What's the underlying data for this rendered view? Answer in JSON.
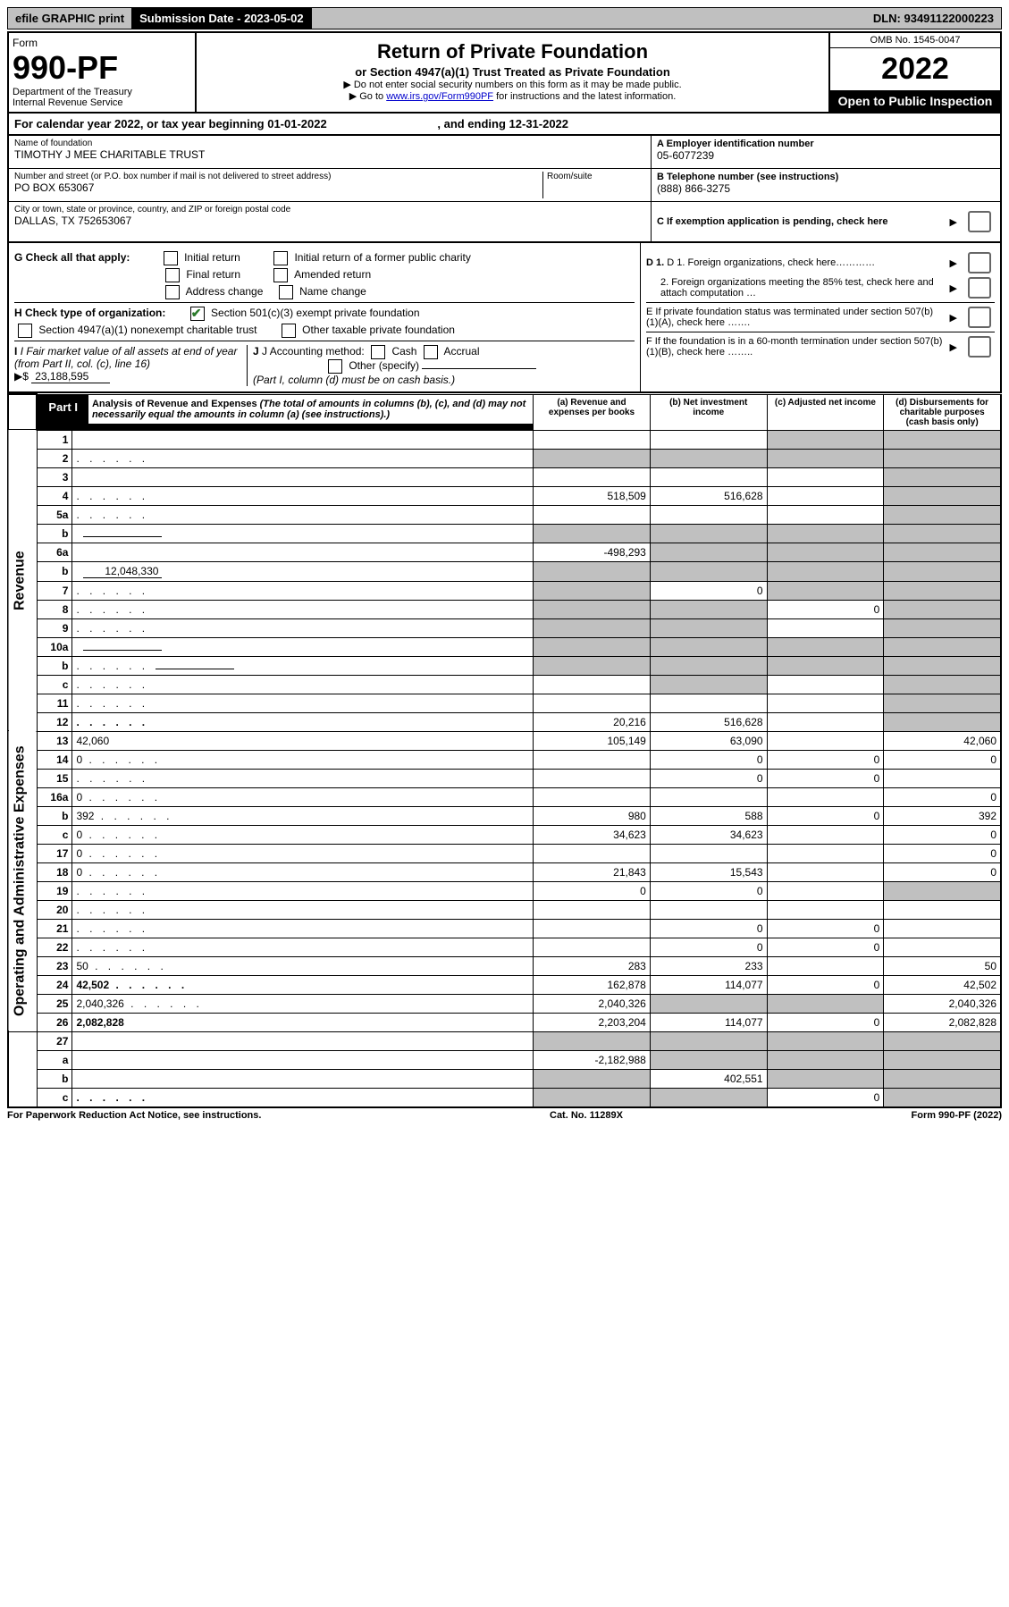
{
  "topbar": {
    "efile": "efile GRAPHIC print",
    "submission_label": "Submission Date - 2023-05-02",
    "dln_label": "DLN: 93491122000223"
  },
  "form": {
    "form_label": "Form",
    "number": "990-PF",
    "dept": "Department of the Treasury",
    "irs": "Internal Revenue Service",
    "title": "Return of Private Foundation",
    "subtitle": "or Section 4947(a)(1) Trust Treated as Private Foundation",
    "note1": "▶ Do not enter social security numbers on this form as it may be made public.",
    "note2_prefix": "▶ Go to ",
    "note2_link": "www.irs.gov/Form990PF",
    "note2_suffix": " for instructions and the latest information.",
    "omb": "OMB No. 1545-0047",
    "year": "2022",
    "open": "Open to Public Inspection"
  },
  "calendar": {
    "text_a": "For calendar year 2022, or tax year beginning 01-01-2022",
    "text_b": ", and ending 12-31-2022"
  },
  "id": {
    "name_label": "Name of foundation",
    "name": "TIMOTHY J MEE CHARITABLE TRUST",
    "addr_label": "Number and street (or P.O. box number if mail is not delivered to street address)",
    "addr": "PO BOX 653067",
    "room_label": "Room/suite",
    "city_label": "City or town, state or province, country, and ZIP or foreign postal code",
    "city": "DALLAS, TX  752653067",
    "a_label": "A Employer identification number",
    "a_val": "05-6077239",
    "b_label": "B Telephone number (see instructions)",
    "b_val": "(888) 866-3275",
    "c_label": "C If exemption application is pending, check here"
  },
  "checks": {
    "g_label": "G Check all that apply:",
    "g_opts": [
      "Initial return",
      "Initial return of a former public charity",
      "Final return",
      "Amended return",
      "Address change",
      "Name change"
    ],
    "h_label": "H Check type of organization:",
    "h_opt1": "Section 501(c)(3) exempt private foundation",
    "h_opt2": "Section 4947(a)(1) nonexempt charitable trust",
    "h_opt3": "Other taxable private foundation",
    "i_label": "I Fair market value of all assets at end of year (from Part II, col. (c), line 16)",
    "i_prefix": "▶$ ",
    "i_val": "23,188,595",
    "j_label": "J Accounting method:",
    "j_cash": "Cash",
    "j_accrual": "Accrual",
    "j_other": "Other (specify)",
    "j_note": "(Part I, column (d) must be on cash basis.)",
    "d1": "D 1. Foreign organizations, check here…………",
    "d2": "2. Foreign organizations meeting the 85% test, check here and attach computation …",
    "e": "E  If private foundation status was terminated under section 507(b)(1)(A), check here …….",
    "f": "F  If the foundation is in a 60-month termination under section 507(b)(1)(B), check here …….."
  },
  "part1": {
    "label": "Part I",
    "title": "Analysis of Revenue and Expenses",
    "title_note": "(The total of amounts in columns (b), (c), and (d) may not necessarily equal the amounts in column (a) (see instructions).)",
    "col_a": "(a) Revenue and expenses per books",
    "col_b": "(b) Net investment income",
    "col_c": "(c) Adjusted net income",
    "col_d": "(d) Disbursements for charitable purposes (cash basis only)"
  },
  "side": {
    "revenue": "Revenue",
    "expenses": "Operating and Administrative Expenses"
  },
  "rows": [
    {
      "n": "1",
      "d": "",
      "a": "",
      "b": "",
      "c": "",
      "cg": true,
      "dg": true
    },
    {
      "n": "2",
      "d": "",
      "dots": true,
      "a": "",
      "b": "",
      "c": "",
      "ag": true,
      "bg": true,
      "cg": true,
      "dg": true
    },
    {
      "n": "3",
      "d": "",
      "a": "",
      "b": "",
      "c": "",
      "dg": true
    },
    {
      "n": "4",
      "d": "",
      "dots": true,
      "a": "518,509",
      "b": "516,628",
      "c": "",
      "dg": true
    },
    {
      "n": "5a",
      "d": "",
      "dots": true,
      "a": "",
      "b": "",
      "c": "",
      "dg": true
    },
    {
      "n": "b",
      "d": "",
      "inline": "",
      "a": "",
      "b": "",
      "c": "",
      "ag": true,
      "bg": true,
      "cg": true,
      "dg": true
    },
    {
      "n": "6a",
      "d": "",
      "a": "-498,293",
      "b": "",
      "c": "",
      "bg": true,
      "cg": true,
      "dg": true
    },
    {
      "n": "b",
      "d": "",
      "inline": "12,048,330",
      "a": "",
      "b": "",
      "c": "",
      "ag": true,
      "bg": true,
      "cg": true,
      "dg": true
    },
    {
      "n": "7",
      "d": "",
      "dots": true,
      "a": "",
      "b": "0",
      "c": "",
      "ag": true,
      "cg": true,
      "dg": true
    },
    {
      "n": "8",
      "d": "",
      "dots": true,
      "a": "",
      "b": "",
      "c": "0",
      "ag": true,
      "bg": true,
      "dg": true
    },
    {
      "n": "9",
      "d": "",
      "dots": true,
      "a": "",
      "b": "",
      "c": "",
      "ag": true,
      "bg": true,
      "dg": true
    },
    {
      "n": "10a",
      "d": "",
      "inline": "",
      "a": "",
      "b": "",
      "c": "",
      "ag": true,
      "bg": true,
      "cg": true,
      "dg": true
    },
    {
      "n": "b",
      "d": "",
      "dots": true,
      "inline": "",
      "a": "",
      "b": "",
      "c": "",
      "ag": true,
      "bg": true,
      "cg": true,
      "dg": true
    },
    {
      "n": "c",
      "d": "",
      "dots": true,
      "a": "",
      "b": "",
      "c": "",
      "bg": true,
      "dg": true
    },
    {
      "n": "11",
      "d": "",
      "dots": true,
      "a": "",
      "b": "",
      "c": "",
      "dg": true
    },
    {
      "n": "12",
      "d": "",
      "dots": true,
      "bold": true,
      "a": "20,216",
      "b": "516,628",
      "c": "",
      "dg": true
    }
  ],
  "exp_rows": [
    {
      "n": "13",
      "d": "42,060",
      "a": "105,149",
      "b": "63,090",
      "c": ""
    },
    {
      "n": "14",
      "d": "0",
      "dots": true,
      "a": "",
      "b": "0",
      "c": "0"
    },
    {
      "n": "15",
      "d": "",
      "dots": true,
      "a": "",
      "b": "0",
      "c": "0"
    },
    {
      "n": "16a",
      "d": "0",
      "dots": true,
      "a": "",
      "b": "",
      "c": ""
    },
    {
      "n": "b",
      "d": "392",
      "dots": true,
      "a": "980",
      "b": "588",
      "c": "0"
    },
    {
      "n": "c",
      "d": "0",
      "dots": true,
      "a": "34,623",
      "b": "34,623",
      "c": ""
    },
    {
      "n": "17",
      "d": "0",
      "dots": true,
      "a": "",
      "b": "",
      "c": ""
    },
    {
      "n": "18",
      "d": "0",
      "dots": true,
      "a": "21,843",
      "b": "15,543",
      "c": ""
    },
    {
      "n": "19",
      "d": "",
      "dots": true,
      "a": "0",
      "b": "0",
      "c": "",
      "dg": true
    },
    {
      "n": "20",
      "d": "",
      "dots": true,
      "a": "",
      "b": "",
      "c": ""
    },
    {
      "n": "21",
      "d": "",
      "dots": true,
      "a": "",
      "b": "0",
      "c": "0"
    },
    {
      "n": "22",
      "d": "",
      "dots": true,
      "a": "",
      "b": "0",
      "c": "0"
    },
    {
      "n": "23",
      "d": "50",
      "dots": true,
      "a": "283",
      "b": "233",
      "c": ""
    },
    {
      "n": "24",
      "d": "42,502",
      "dots": true,
      "bold": true,
      "a": "162,878",
      "b": "114,077",
      "c": "0"
    },
    {
      "n": "25",
      "d": "2,040,326",
      "dots": true,
      "a": "2,040,326",
      "b": "",
      "c": "",
      "bg": true,
      "cg": true
    },
    {
      "n": "26",
      "d": "2,082,828",
      "bold": true,
      "a": "2,203,204",
      "b": "114,077",
      "c": "0"
    }
  ],
  "bottom_rows": [
    {
      "n": "27",
      "d": "",
      "a": "",
      "b": "",
      "c": "",
      "ag": true,
      "bg": true,
      "cg": true,
      "dg": true
    },
    {
      "n": "a",
      "d": "",
      "bold": true,
      "a": "-2,182,988",
      "b": "",
      "c": "",
      "bg": true,
      "cg": true,
      "dg": true
    },
    {
      "n": "b",
      "d": "",
      "bold": true,
      "a": "",
      "b": "402,551",
      "c": "",
      "ag": true,
      "cg": true,
      "dg": true
    },
    {
      "n": "c",
      "d": "",
      "dots": true,
      "bold": true,
      "a": "",
      "b": "",
      "c": "0",
      "ag": true,
      "bg": true,
      "dg": true
    }
  ],
  "footer": {
    "left": "For Paperwork Reduction Act Notice, see instructions.",
    "center": "Cat. No. 11289X",
    "right": "Form 990-PF (2022)"
  }
}
